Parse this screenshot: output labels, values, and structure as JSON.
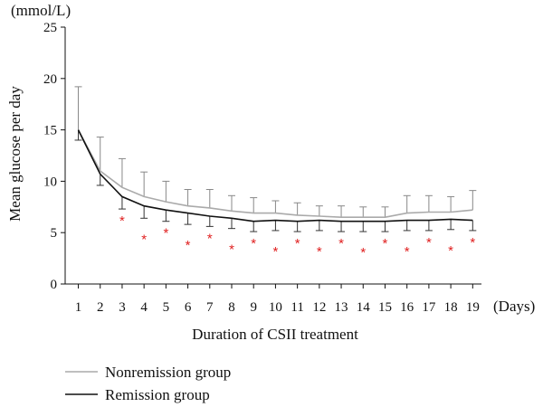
{
  "chart_data": {
    "type": "line",
    "title": "",
    "xlabel": "Duration of CSII treatment",
    "ylabel": "Mean glucose per day",
    "y_unit_label": "(mmol/L)",
    "x_unit_label": "(Days)",
    "x": [
      1,
      2,
      3,
      4,
      5,
      6,
      7,
      8,
      9,
      10,
      11,
      12,
      13,
      14,
      15,
      16,
      17,
      18,
      19
    ],
    "xlim": [
      0.4,
      19.4
    ],
    "ylim": [
      0,
      25
    ],
    "yticks": [
      0,
      5,
      10,
      15,
      20,
      25
    ],
    "grid": false,
    "legend_position": "bottom-left",
    "series": [
      {
        "name": "Nonremission group",
        "color": "#aaaaaa",
        "values": [
          15.0,
          11.0,
          9.4,
          8.5,
          8.0,
          7.6,
          7.4,
          7.1,
          6.9,
          6.9,
          6.7,
          6.6,
          6.5,
          6.5,
          6.5,
          6.9,
          7.0,
          7.0,
          7.2
        ],
        "error": [
          4.2,
          3.3,
          2.8,
          2.4,
          2.0,
          1.6,
          1.8,
          1.5,
          1.5,
          1.2,
          1.2,
          1.0,
          1.1,
          1.0,
          1.0,
          1.7,
          1.6,
          1.5,
          1.9
        ]
      },
      {
        "name": "Remission group",
        "color": "#111111",
        "values": [
          15.0,
          10.7,
          8.5,
          7.6,
          7.2,
          6.9,
          6.6,
          6.4,
          6.1,
          6.2,
          6.1,
          6.2,
          6.1,
          6.1,
          6.1,
          6.2,
          6.2,
          6.3,
          6.2
        ],
        "error_low": [
          1.0,
          1.1,
          1.2,
          1.2,
          1.1,
          1.1,
          1.0,
          1.0,
          1.0,
          1.0,
          1.0,
          1.0,
          1.0,
          1.0,
          1.0,
          1.0,
          1.0,
          1.0,
          1.0
        ]
      }
    ],
    "significance": {
      "symbol": "*",
      "color": "#e02020",
      "days": [
        3,
        4,
        5,
        6,
        7,
        8,
        9,
        10,
        11,
        12,
        13,
        14,
        15,
        16,
        17,
        18,
        19
      ]
    }
  }
}
